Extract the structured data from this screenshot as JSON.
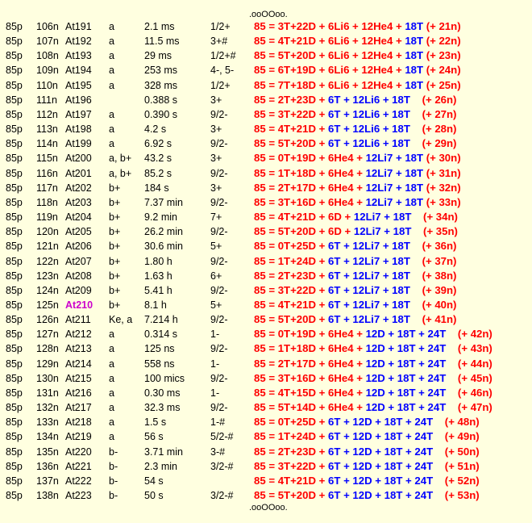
{
  "markers": {
    "top": ".ooOOoo.",
    "bottom": ".ooOOoo."
  },
  "colors": {
    "background": "#ffffe0",
    "red": "#ff0000",
    "blue": "#0000ff",
    "highlight": "#cc00cc"
  },
  "rows": [
    {
      "z": "85p",
      "n": "106n",
      "isotope": "At191",
      "mode": "a",
      "halflife": "2.1 ms",
      "spin": "1/2+",
      "formula": [
        [
          "85 = 3T+22D + 6Li6 + 12He4 + ",
          "r"
        ],
        [
          "18T ",
          "b"
        ],
        [
          "(+ 21n)",
          "r"
        ]
      ]
    },
    {
      "z": "85p",
      "n": "107n",
      "isotope": "At192",
      "mode": "a",
      "halflife": "11.5 ms",
      "spin": "3+#",
      "formula": [
        [
          "85 = 4T+21D + 6Li6 + 12He4 + ",
          "r"
        ],
        [
          "18T ",
          "b"
        ],
        [
          "(+ 22n)",
          "r"
        ]
      ]
    },
    {
      "z": "85p",
      "n": "108n",
      "isotope": "At193",
      "mode": "a",
      "halflife": "29 ms",
      "spin": "1/2+#",
      "formula": [
        [
          "85 = 5T+20D + 6Li6 + 12He4 + ",
          "r"
        ],
        [
          "18T ",
          "b"
        ],
        [
          "(+ 23n)",
          "r"
        ]
      ]
    },
    {
      "z": "85p",
      "n": "109n",
      "isotope": "At194",
      "mode": "a",
      "halflife": "253 ms",
      "spin": "4-, 5-",
      "formula": [
        [
          "85 = 6T+19D + 6Li6 + 12He4 + ",
          "r"
        ],
        [
          "18T ",
          "b"
        ],
        [
          "(+ 24n)",
          "r"
        ]
      ]
    },
    {
      "z": "85p",
      "n": "110n",
      "isotope": "At195",
      "mode": "a",
      "halflife": "328 ms",
      "spin": "1/2+",
      "formula": [
        [
          "85 = 7T+18D + 6Li6 + 12He4 + ",
          "r"
        ],
        [
          "18T ",
          "b"
        ],
        [
          "(+ 25n)",
          "r"
        ]
      ]
    },
    {
      "z": "85p",
      "n": "111n",
      "isotope": "At196",
      "mode": "",
      "halflife": "0.388 s",
      "spin": "3+",
      "formula": [
        [
          "85 = 2T+23D + ",
          "r"
        ],
        [
          "6T + 12Li6 + 18T",
          "b"
        ],
        [
          "    (+ 26n)",
          "r"
        ]
      ]
    },
    {
      "z": "85p",
      "n": "112n",
      "isotope": "At197",
      "mode": "a",
      "halflife": "0.390 s",
      "spin": "9/2-",
      "formula": [
        [
          "85 = 3T+22D + ",
          "r"
        ],
        [
          "6T + 12Li6 + 18T",
          "b"
        ],
        [
          "    (+ 27n)",
          "r"
        ]
      ]
    },
    {
      "z": "85p",
      "n": "113n",
      "isotope": "At198",
      "mode": "a",
      "halflife": "4.2 s",
      "spin": "3+",
      "formula": [
        [
          "85 = 4T+21D + ",
          "r"
        ],
        [
          "6T + 12Li6 + 18T",
          "b"
        ],
        [
          "    (+ 28n)",
          "r"
        ]
      ]
    },
    {
      "z": "85p",
      "n": "114n",
      "isotope": "At199",
      "mode": "a",
      "halflife": "6.92 s",
      "spin": "9/2-",
      "formula": [
        [
          "85 = 5T+20D + ",
          "r"
        ],
        [
          "6T + 12Li6 + 18T",
          "b"
        ],
        [
          "    (+ 29n)",
          "r"
        ]
      ]
    },
    {
      "z": "85p",
      "n": "115n",
      "isotope": "At200",
      "mode": "a, b+",
      "halflife": "43.2 s",
      "spin": "3+",
      "formula": [
        [
          "85 = 0T+19D + 6He4 + ",
          "r"
        ],
        [
          "12Li7 + 18T ",
          "b"
        ],
        [
          "(+ 30n)",
          "r"
        ]
      ]
    },
    {
      "z": "85p",
      "n": "116n",
      "isotope": "At201",
      "mode": "a, b+",
      "halflife": "85.2 s",
      "spin": "9/2-",
      "formula": [
        [
          "85 = 1T+18D + 6He4 + ",
          "r"
        ],
        [
          "12Li7 + 18T ",
          "b"
        ],
        [
          "(+ 31n)",
          "r"
        ]
      ]
    },
    {
      "z": "85p",
      "n": "117n",
      "isotope": "At202",
      "mode": "b+",
      "halflife": "184 s",
      "spin": "3+",
      "formula": [
        [
          "85 = 2T+17D + 6He4 + ",
          "r"
        ],
        [
          "12Li7 + 18T ",
          "b"
        ],
        [
          "(+ 32n)",
          "r"
        ]
      ]
    },
    {
      "z": "85p",
      "n": "118n",
      "isotope": "At203",
      "mode": "b+",
      "halflife": "7.37 min",
      "spin": "9/2-",
      "formula": [
        [
          "85 = 3T+16D + 6He4 + ",
          "r"
        ],
        [
          "12Li7 + 18T ",
          "b"
        ],
        [
          "(+ 33n)",
          "r"
        ]
      ]
    },
    {
      "z": "85p",
      "n": "119n",
      "isotope": "At204",
      "mode": "b+",
      "halflife": "9.2 min",
      "spin": "7+",
      "formula": [
        [
          "85 = 4T+21D + 6D + ",
          "r"
        ],
        [
          "12Li7 + 18T",
          "b"
        ],
        [
          "    (+ 34n)",
          "r"
        ]
      ]
    },
    {
      "z": "85p",
      "n": "120n",
      "isotope": "At205",
      "mode": "b+",
      "halflife": "26.2 min",
      "spin": "9/2-",
      "formula": [
        [
          "85 = 5T+20D + 6D + ",
          "r"
        ],
        [
          "12Li7 + 18T",
          "b"
        ],
        [
          "    (+ 35n)",
          "r"
        ]
      ]
    },
    {
      "z": "85p",
      "n": "121n",
      "isotope": "At206",
      "mode": "b+",
      "halflife": "30.6 min",
      "spin": "5+",
      "formula": [
        [
          "85 = 0T+25D + ",
          "r"
        ],
        [
          "6T + 12Li7 + 18T",
          "b"
        ],
        [
          "    (+ 36n)",
          "r"
        ]
      ]
    },
    {
      "z": "85p",
      "n": "122n",
      "isotope": "At207",
      "mode": "b+",
      "halflife": "1.80 h",
      "spin": "9/2-",
      "formula": [
        [
          "85 = 1T+24D + ",
          "r"
        ],
        [
          "6T + 12Li7 + 18T",
          "b"
        ],
        [
          "    (+ 37n)",
          "r"
        ]
      ]
    },
    {
      "z": "85p",
      "n": "123n",
      "isotope": "At208",
      "mode": "b+",
      "halflife": "1.63 h",
      "spin": "6+",
      "formula": [
        [
          "85 = 2T+23D + ",
          "r"
        ],
        [
          "6T + 12Li7 + 18T",
          "b"
        ],
        [
          "    (+ 38n)",
          "r"
        ]
      ]
    },
    {
      "z": "85p",
      "n": "124n",
      "isotope": "At209",
      "mode": "b+",
      "halflife": "5.41 h",
      "spin": "9/2-",
      "formula": [
        [
          "85 = 3T+22D + ",
          "r"
        ],
        [
          "6T + 12Li7 + 18T",
          "b"
        ],
        [
          "    (+ 39n)",
          "r"
        ]
      ]
    },
    {
      "z": "85p",
      "n": "125n",
      "isotope": "At210",
      "highlight": true,
      "mode": "b+",
      "halflife": "8.1 h",
      "spin": "5+",
      "formula": [
        [
          "85 = 4T+21D + ",
          "r"
        ],
        [
          "6T + 12Li7 + 18T",
          "b"
        ],
        [
          "    (+ 40n)",
          "r"
        ]
      ]
    },
    {
      "z": "85p",
      "n": "126n",
      "isotope": "At211",
      "mode": "Ke, a",
      "halflife": "7.214 h",
      "spin": "9/2-",
      "formula": [
        [
          "85 = 5T+20D + ",
          "r"
        ],
        [
          "6T + 12Li7 + 18T",
          "b"
        ],
        [
          "    (+ 41n)",
          "r"
        ]
      ]
    },
    {
      "z": "85p",
      "n": "127n",
      "isotope": "At212",
      "mode": "a",
      "halflife": "0.314 s",
      "spin": "1-",
      "formula": [
        [
          "85 = 0T+19D + 6He4 + ",
          "r"
        ],
        [
          "12D + 18T + 24T",
          "b"
        ],
        [
          "    (+ 42n)",
          "r"
        ]
      ]
    },
    {
      "z": "85p",
      "n": "128n",
      "isotope": "At213",
      "mode": "a",
      "halflife": "125 ns",
      "spin": "9/2-",
      "formula": [
        [
          "85 = 1T+18D + 6He4 + ",
          "r"
        ],
        [
          "12D + 18T + 24T",
          "b"
        ],
        [
          "    (+ 43n)",
          "r"
        ]
      ]
    },
    {
      "z": "85p",
      "n": "129n",
      "isotope": "At214",
      "mode": "a",
      "halflife": "558 ns",
      "spin": "1-",
      "formula": [
        [
          "85 = 2T+17D + 6He4 + ",
          "r"
        ],
        [
          "12D + 18T + 24T",
          "b"
        ],
        [
          "    (+ 44n)",
          "r"
        ]
      ]
    },
    {
      "z": "85p",
      "n": "130n",
      "isotope": "At215",
      "mode": "a",
      "halflife": "100 mics",
      "spin": "9/2-",
      "formula": [
        [
          "85 = 3T+16D + 6He4 + ",
          "r"
        ],
        [
          "12D + 18T + 24T",
          "b"
        ],
        [
          "    (+ 45n)",
          "r"
        ]
      ]
    },
    {
      "z": "85p",
      "n": "131n",
      "isotope": "At216",
      "mode": "a",
      "halflife": "0.30 ms",
      "spin": "1-",
      "formula": [
        [
          "85 = 4T+15D + 6He4 + ",
          "r"
        ],
        [
          "12D + 18T + 24T",
          "b"
        ],
        [
          "    (+ 46n)",
          "r"
        ]
      ]
    },
    {
      "z": "85p",
      "n": "132n",
      "isotope": "At217",
      "mode": "a",
      "halflife": "32.3 ms",
      "spin": "9/2-",
      "formula": [
        [
          "85 = 5T+14D + 6He4 + ",
          "r"
        ],
        [
          "12D + 18T + 24T",
          "b"
        ],
        [
          "    (+ 47n)",
          "r"
        ]
      ]
    },
    {
      "z": "85p",
      "n": "133n",
      "isotope": "At218",
      "mode": "a",
      "halflife": "1.5 s",
      "spin": "1-#",
      "formula": [
        [
          "85 = 0T+25D + ",
          "r"
        ],
        [
          "6T + 12D + 18T + 24T",
          "b"
        ],
        [
          "    (+ 48n)",
          "r"
        ]
      ]
    },
    {
      "z": "85p",
      "n": "134n",
      "isotope": "At219",
      "mode": "a",
      "halflife": "56 s",
      "spin": "5/2-#",
      "formula": [
        [
          "85 = 1T+24D + ",
          "r"
        ],
        [
          "6T + 12D + 18T + 24T",
          "b"
        ],
        [
          "    (+ 49n)",
          "r"
        ]
      ]
    },
    {
      "z": "85p",
      "n": "135n",
      "isotope": "At220",
      "mode": "b-",
      "halflife": "3.71 min",
      "spin": "3-#",
      "formula": [
        [
          "85 = 2T+23D + ",
          "r"
        ],
        [
          "6T + 12D + 18T + 24T",
          "b"
        ],
        [
          "    (+ 50n)",
          "r"
        ]
      ]
    },
    {
      "z": "85p",
      "n": "136n",
      "isotope": "At221",
      "mode": "b-",
      "halflife": "2.3 min",
      "spin": "3/2-#",
      "formula": [
        [
          "85 = 3T+22D + ",
          "r"
        ],
        [
          "6T + 12D + 18T + 24T",
          "b"
        ],
        [
          "    (+ 51n)",
          "r"
        ]
      ]
    },
    {
      "z": "85p",
      "n": "137n",
      "isotope": "At222",
      "mode": "b-",
      "halflife": "54 s",
      "spin": "",
      "formula": [
        [
          "85 = 4T+21D + ",
          "r"
        ],
        [
          "6T + 12D + 18T + 24T",
          "b"
        ],
        [
          "    (+ 52n)",
          "r"
        ]
      ]
    },
    {
      "z": "85p",
      "n": "138n",
      "isotope": "At223",
      "mode": "b-",
      "halflife": "50 s",
      "spin": "3/2-#",
      "formula": [
        [
          "85 = 5T+20D + ",
          "r"
        ],
        [
          "6T + 12D + 18T + 24T",
          "b"
        ],
        [
          "    (+ 53n)",
          "r"
        ]
      ]
    }
  ]
}
